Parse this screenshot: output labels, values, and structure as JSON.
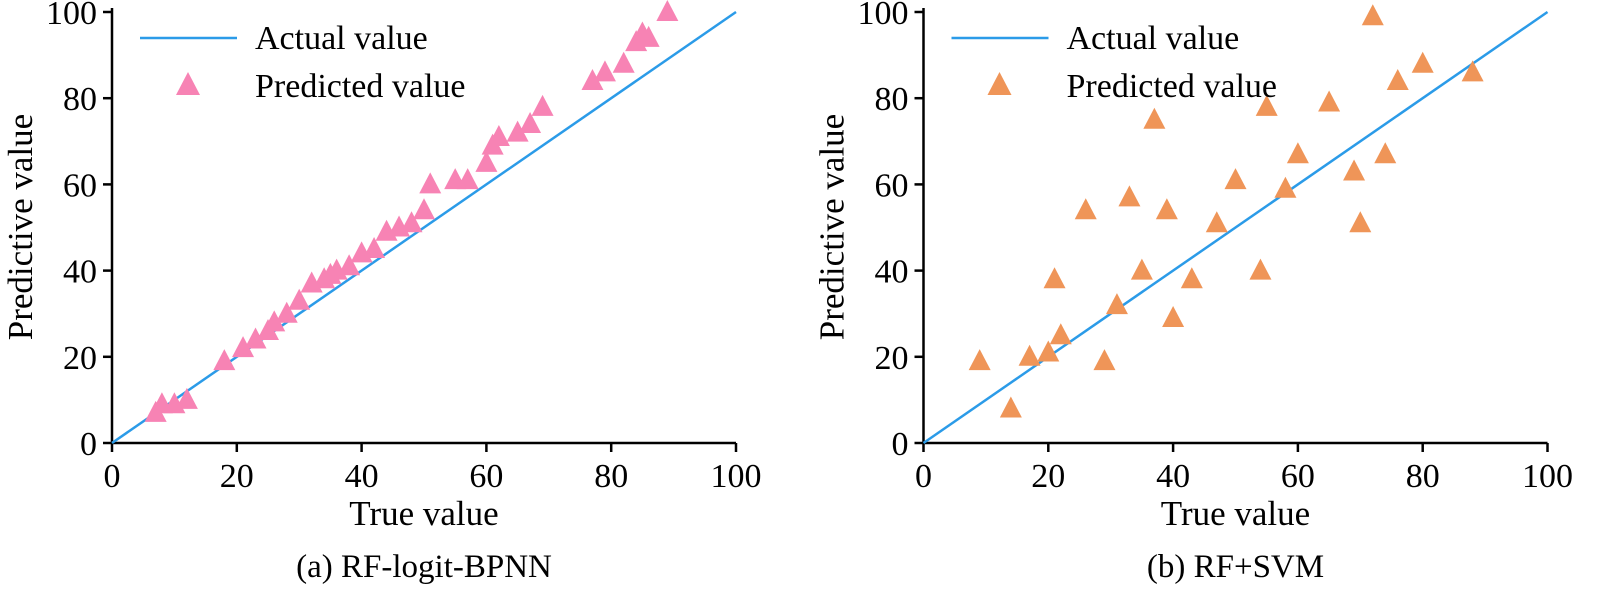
{
  "chart_data": [
    {
      "type": "scatter",
      "caption": "(a) RF-logit-BPNN",
      "xlabel": "True value",
      "ylabel": "Predictive value",
      "legend_line": "Actual value",
      "legend_marker": "Predicted value",
      "line_color": "#2B9BE8",
      "marker_color": "#F783B4",
      "xlim": [
        0,
        100
      ],
      "ylim": [
        0,
        100
      ],
      "ticks": [
        0,
        20,
        40,
        60,
        80,
        100
      ],
      "line": {
        "x": [
          0,
          100
        ],
        "y": [
          0,
          100
        ]
      },
      "points": [
        [
          7,
          7
        ],
        [
          8,
          9
        ],
        [
          10,
          9
        ],
        [
          12,
          10
        ],
        [
          18,
          19
        ],
        [
          21,
          22
        ],
        [
          23,
          24
        ],
        [
          25,
          26
        ],
        [
          26,
          28
        ],
        [
          28,
          30
        ],
        [
          30,
          33
        ],
        [
          32,
          37
        ],
        [
          34,
          38
        ],
        [
          35,
          39
        ],
        [
          36,
          40
        ],
        [
          38,
          41
        ],
        [
          40,
          44
        ],
        [
          42,
          45
        ],
        [
          44,
          49
        ],
        [
          46,
          50
        ],
        [
          48,
          51
        ],
        [
          50,
          54
        ],
        [
          51,
          60
        ],
        [
          55,
          61
        ],
        [
          57,
          61
        ],
        [
          60,
          65
        ],
        [
          61,
          69
        ],
        [
          62,
          71
        ],
        [
          65,
          72
        ],
        [
          67,
          74
        ],
        [
          69,
          78
        ],
        [
          77,
          84
        ],
        [
          79,
          86
        ],
        [
          82,
          88
        ],
        [
          84,
          93
        ],
        [
          85,
          95
        ],
        [
          86,
          94
        ],
        [
          89,
          100
        ]
      ]
    },
    {
      "type": "scatter",
      "caption": "(b) RF+SVM",
      "xlabel": "True value",
      "ylabel": "Predictive value",
      "legend_line": "Actual value",
      "legend_marker": "Predicted value",
      "line_color": "#2B9BE8",
      "marker_color": "#EF9558",
      "xlim": [
        0,
        100
      ],
      "ylim": [
        0,
        100
      ],
      "ticks": [
        0,
        20,
        40,
        60,
        80,
        100
      ],
      "line": {
        "x": [
          0,
          100
        ],
        "y": [
          0,
          100
        ]
      },
      "points": [
        [
          9,
          19
        ],
        [
          14,
          8
        ],
        [
          17,
          20
        ],
        [
          20,
          21
        ],
        [
          22,
          25
        ],
        [
          21,
          38
        ],
        [
          26,
          54
        ],
        [
          29,
          19
        ],
        [
          31,
          32
        ],
        [
          33,
          57
        ],
        [
          35,
          40
        ],
        [
          37,
          75
        ],
        [
          39,
          54
        ],
        [
          40,
          29
        ],
        [
          43,
          38
        ],
        [
          47,
          51
        ],
        [
          50,
          61
        ],
        [
          54,
          40
        ],
        [
          55,
          78
        ],
        [
          58,
          59
        ],
        [
          60,
          67
        ],
        [
          65,
          79
        ],
        [
          69,
          63
        ],
        [
          70,
          51
        ],
        [
          72,
          99
        ],
        [
          74,
          67
        ],
        [
          76,
          84
        ],
        [
          80,
          88
        ],
        [
          88,
          86
        ]
      ]
    }
  ]
}
